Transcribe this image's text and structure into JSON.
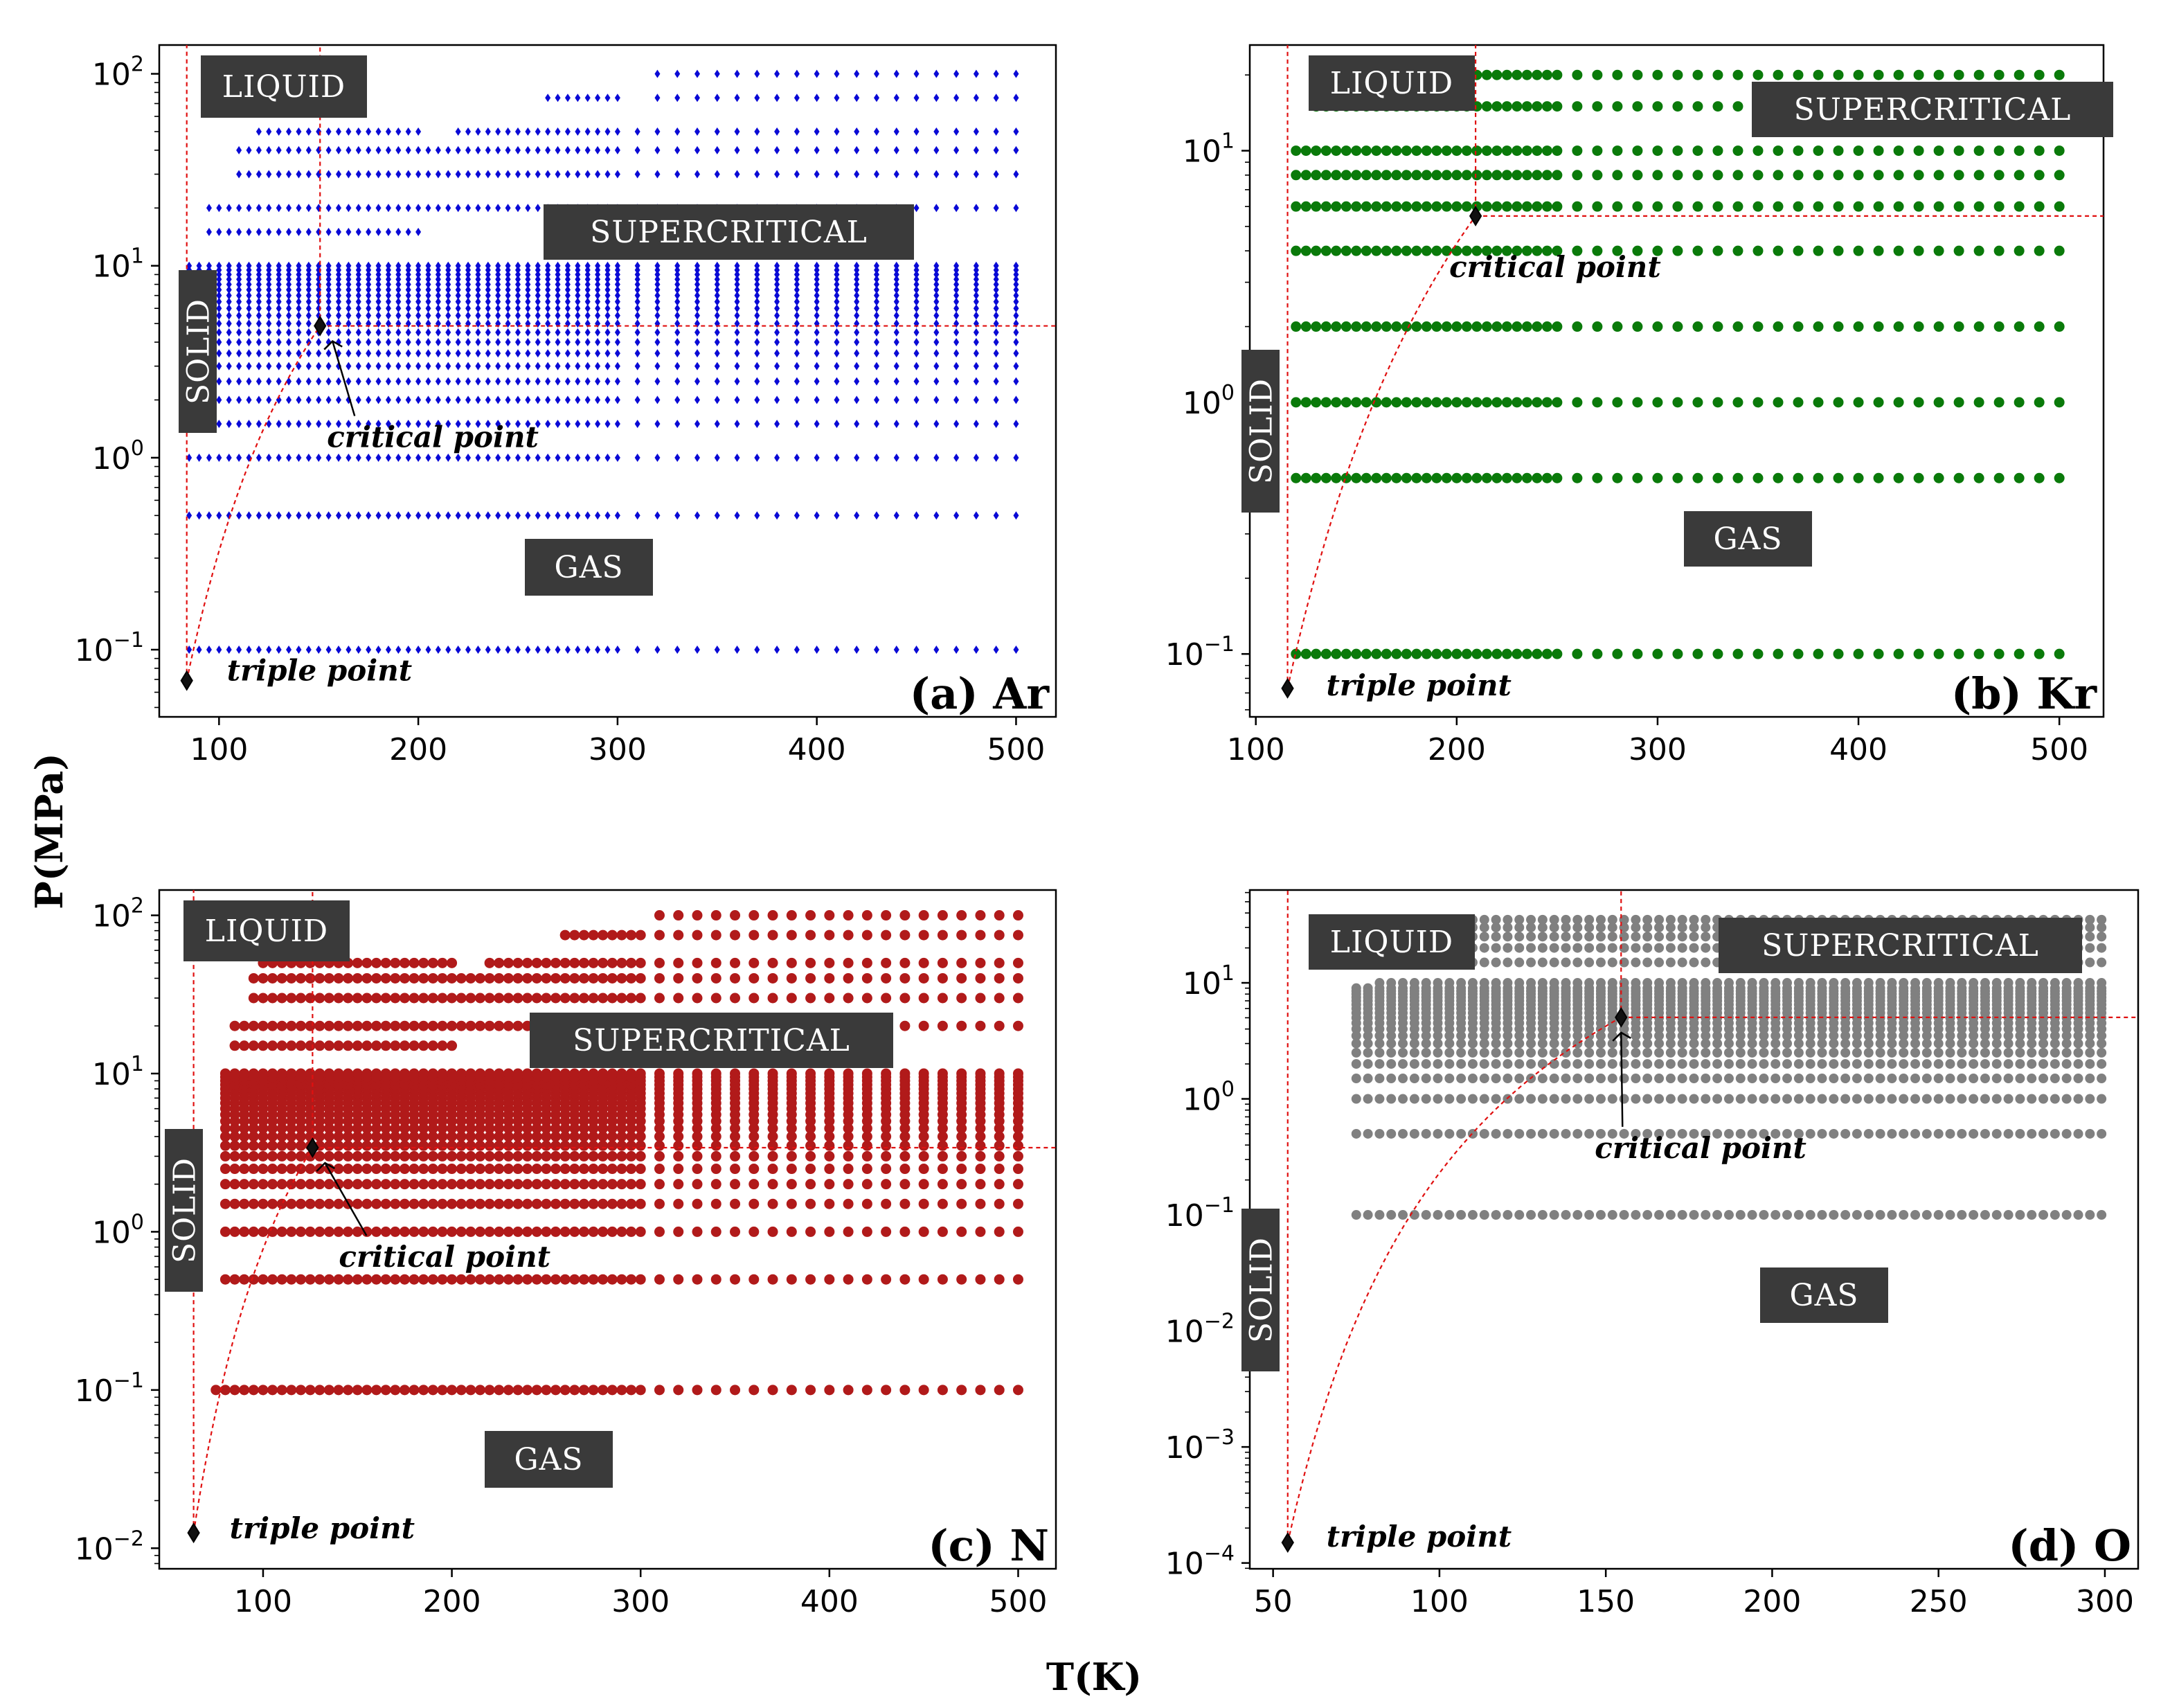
{
  "figure": {
    "xlabel": "T(K)",
    "ylabel": "P(MPa)"
  },
  "chart_data": [
    {
      "type": "scatter",
      "tag": "(a) Ar",
      "color": "#0a0ad6",
      "xlim": [
        70,
        520
      ],
      "ylim_log10": [
        -1.35,
        2.15
      ],
      "xticks": [
        100,
        200,
        300,
        400,
        500
      ],
      "yticks_exp": [
        -1,
        0,
        1,
        2
      ],
      "region_labels": [
        "LIQUID",
        "SUPERCRITICAL",
        "SOLID",
        "GAS"
      ],
      "triple_point": {
        "label": "triple point",
        "T": 83.8,
        "P": 0.069
      },
      "critical_point": {
        "label": "critical point",
        "T": 150.7,
        "P": 4.86
      },
      "pressure_levels": [
        0.1,
        0.5,
        1,
        1.5,
        2,
        2.5,
        3,
        3.5,
        4,
        4.5,
        5,
        5.5,
        6,
        6.5,
        7,
        7.5,
        8,
        8.5,
        9,
        9.5,
        10,
        15,
        20,
        30,
        40,
        50,
        75,
        100
      ],
      "sampling": "T grid: dense (~5 K) up to 300 K, ~10 K from 300 to 500 K; high-pressure rows partially covered"
    },
    {
      "type": "scatter",
      "tag": "(b) Kr",
      "color": "#0a7a0a",
      "xlim": [
        97,
        522
      ],
      "ylim_log10": [
        -1.25,
        1.42
      ],
      "xticks": [
        100,
        200,
        300,
        400,
        500
      ],
      "yticks_exp": [
        -1,
        0,
        1
      ],
      "region_labels": [
        "LIQUID",
        "SUPERCRITICAL",
        "SOLID",
        "GAS"
      ],
      "triple_point": {
        "label": "triple point",
        "T": 115.8,
        "P": 0.073
      },
      "critical_point": {
        "label": "critical point",
        "T": 209.4,
        "P": 5.5
      },
      "pressure_levels": [
        0.1,
        0.5,
        1,
        2,
        4,
        6,
        8,
        10,
        15,
        20
      ],
      "sampling": "T grid: ~5 K from 120 to 250 K, 10 K from 250 to 500 K"
    },
    {
      "type": "scatter",
      "tag": "(c) N",
      "color": "#b11a1a",
      "xlim": [
        45,
        520
      ],
      "ylim_log10": [
        -2.13,
        2.16
      ],
      "xticks": [
        100,
        200,
        300,
        400,
        500
      ],
      "yticks_exp": [
        -2,
        -1,
        0,
        1,
        2
      ],
      "region_labels": [
        "LIQUID",
        "SUPERCRITICAL",
        "SOLID",
        "GAS"
      ],
      "triple_point": {
        "label": "triple point",
        "T": 63.2,
        "P": 0.0125
      },
      "critical_point": {
        "label": "critical point",
        "T": 126.2,
        "P": 3.4
      },
      "pressure_levels": [
        0.1,
        0.5,
        1,
        1.5,
        2,
        2.5,
        3,
        3.5,
        4,
        4.5,
        5,
        5.5,
        6,
        6.5,
        7,
        7.5,
        8,
        8.5,
        9,
        9.5,
        10,
        15,
        20,
        30,
        40,
        50,
        75,
        100
      ],
      "sampling": "T grid: ~5 K from 75 to 300 K, 10 K from 300 to 500 K"
    },
    {
      "type": "scatter",
      "tag": "(d) O",
      "color": "#808080",
      "xlim": [
        43,
        310
      ],
      "ylim_log10": [
        -4.05,
        1.8
      ],
      "xticks": [
        50,
        100,
        150,
        200,
        250,
        300
      ],
      "yticks_exp": [
        -4,
        -3,
        -2,
        -1,
        0,
        1
      ],
      "region_labels": [
        "LIQUID",
        "SUPERCRITICAL",
        "SOLID",
        "GAS"
      ],
      "triple_point": {
        "label": "triple point",
        "T": 54.4,
        "P": 0.00015
      },
      "critical_point": {
        "label": "critical point",
        "T": 154.6,
        "P": 5.04
      },
      "pressure_levels": [
        0.1,
        0.5,
        1,
        1.5,
        2,
        2.5,
        3,
        3.5,
        4,
        4.5,
        5,
        5.5,
        6,
        6.5,
        7,
        7.5,
        8,
        8.5,
        9,
        10,
        15,
        20,
        25,
        30,
        35
      ],
      "sampling": "T grid: ~3.5 K from 75 to 300 K"
    }
  ]
}
